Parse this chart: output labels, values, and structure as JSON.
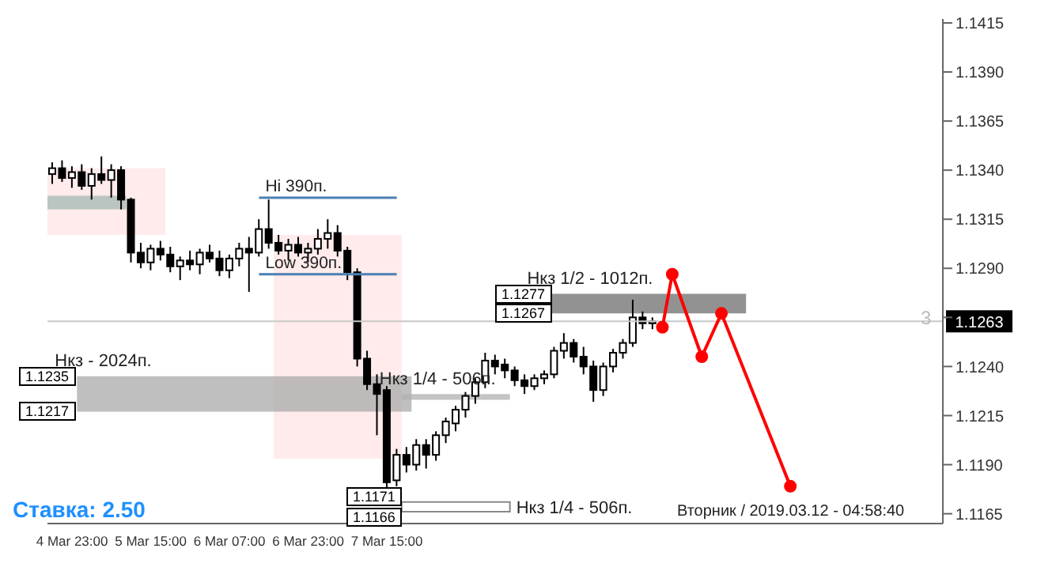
{
  "chart_data": {
    "type": "candlestick",
    "color": "#000000",
    "categories": [
      null,
      null,
      "4 Mar 23:00",
      null,
      null,
      null,
      null,
      null,
      null,
      null,
      "5 Mar 15:00",
      null,
      null,
      null,
      null,
      null,
      null,
      null,
      "6 Mar 07:00",
      null,
      null,
      null,
      null,
      null,
      null,
      null,
      "6 Mar 23:00",
      null,
      null,
      null,
      null,
      null,
      null,
      null,
      "7 Mar 15:00",
      null,
      null,
      null,
      null,
      null,
      null,
      null,
      null,
      null,
      null,
      null,
      null,
      null,
      null,
      null,
      null,
      null,
      null,
      null,
      null,
      null,
      null,
      null,
      null,
      null,
      null,
      null,
      null,
      null,
      null,
      null,
      null,
      null,
      null,
      null,
      null,
      null,
      null,
      null,
      null,
      null,
      null,
      null,
      null,
      null,
      null,
      null,
      null,
      null,
      null,
      null,
      null,
      null,
      null,
      null,
      null
    ],
    "ohlc": [
      [
        1.1338,
        1.1344,
        1.1333,
        1.1341
      ],
      [
        1.1341,
        1.1345,
        1.1334,
        1.1336
      ],
      [
        1.1336,
        1.1342,
        1.1331,
        1.1339
      ],
      [
        1.1339,
        1.1343,
        1.133,
        1.1332
      ],
      [
        1.1332,
        1.1341,
        1.1325,
        1.1338
      ],
      [
        1.1338,
        1.1347,
        1.1333,
        1.1335
      ],
      [
        1.1335,
        1.1343,
        1.1326,
        1.134
      ],
      [
        1.134,
        1.1342,
        1.132,
        1.1325
      ],
      [
        1.1325,
        1.1326,
        1.1293,
        1.1298
      ],
      [
        1.1298,
        1.1303,
        1.129,
        1.1293
      ],
      [
        1.1293,
        1.1302,
        1.1289,
        1.13
      ],
      [
        1.13,
        1.1304,
        1.1294,
        1.1297
      ],
      [
        1.1297,
        1.1301,
        1.1288,
        1.1291
      ],
      [
        1.1291,
        1.1296,
        1.1284,
        1.1294
      ],
      [
        1.1294,
        1.1299,
        1.1289,
        1.1292
      ],
      [
        1.1292,
        1.13,
        1.1287,
        1.1298
      ],
      [
        1.1298,
        1.1302,
        1.1293,
        1.1295
      ],
      [
        1.1295,
        1.1299,
        1.1286,
        1.1289
      ],
      [
        1.1289,
        1.1297,
        1.1285,
        1.1295
      ],
      [
        1.1295,
        1.1303,
        1.1291,
        1.13
      ],
      [
        1.13,
        1.1306,
        1.1278,
        1.1298
      ],
      [
        1.1298,
        1.1315,
        1.1296,
        1.131
      ],
      [
        1.131,
        1.1325,
        1.13,
        1.1303
      ],
      [
        1.1303,
        1.1307,
        1.1297,
        1.1299
      ],
      [
        1.1299,
        1.1305,
        1.1294,
        1.1302
      ],
      [
        1.1302,
        1.1306,
        1.1296,
        1.1298
      ],
      [
        1.1298,
        1.1303,
        1.1293,
        1.13
      ],
      [
        1.13,
        1.131,
        1.1297,
        1.1305
      ],
      [
        1.1305,
        1.1315,
        1.13,
        1.1308
      ],
      [
        1.1308,
        1.1312,
        1.1296,
        1.1299
      ],
      [
        1.1299,
        1.1301,
        1.1284,
        1.1288
      ],
      [
        1.1288,
        1.129,
        1.124,
        1.1244
      ],
      [
        1.1244,
        1.1248,
        1.1228,
        1.1231
      ],
      [
        1.1231,
        1.1236,
        1.1205,
        1.1226
      ],
      [
        1.1228,
        1.123,
        1.1178,
        1.1181
      ],
      [
        1.1182,
        1.1198,
        1.1179,
        1.1195
      ],
      [
        1.1195,
        1.1199,
        1.1186,
        1.119
      ],
      [
        1.119,
        1.1203,
        1.1187,
        1.12
      ],
      [
        1.12,
        1.1203,
        1.1188,
        1.1195
      ],
      [
        1.1195,
        1.1207,
        1.1192,
        1.1205
      ],
      [
        1.1205,
        1.1214,
        1.1201,
        1.1212
      ],
      [
        1.1211,
        1.122,
        1.1207,
        1.1218
      ],
      [
        1.1218,
        1.1227,
        1.1214,
        1.1225
      ],
      [
        1.1225,
        1.1234,
        1.1221,
        1.1232
      ],
      [
        1.1232,
        1.1247,
        1.1229,
        1.1243
      ],
      [
        1.1243,
        1.1246,
        1.1236,
        1.124
      ],
      [
        1.1241,
        1.1244,
        1.1234,
        1.1238
      ],
      [
        1.1238,
        1.124,
        1.123,
        1.1233
      ],
      [
        1.1233,
        1.1236,
        1.1226,
        1.123
      ],
      [
        1.123,
        1.1236,
        1.1228,
        1.1234
      ],
      [
        1.1234,
        1.1238,
        1.1231,
        1.1236
      ],
      [
        1.1236,
        1.125,
        1.1234,
        1.1248
      ],
      [
        1.1248,
        1.1257,
        1.1244,
        1.1252
      ],
      [
        1.1252,
        1.1254,
        1.1242,
        1.1245
      ],
      [
        1.1245,
        1.125,
        1.1236,
        1.124
      ],
      [
        1.124,
        1.1243,
        1.1222,
        1.1228
      ],
      [
        1.1228,
        1.1242,
        1.1225,
        1.124
      ],
      [
        1.124,
        1.1249,
        1.1237,
        1.1247
      ],
      [
        1.1247,
        1.1254,
        1.1244,
        1.1252
      ],
      [
        1.1252,
        1.1274,
        1.125,
        1.1265
      ],
      [
        1.1265,
        1.1268,
        1.1259,
        1.1262
      ],
      [
        1.1262,
        1.1265,
        1.1259,
        1.1263
      ],
      null,
      null,
      null,
      null,
      null,
      null,
      null,
      null,
      null,
      null,
      null,
      null,
      null,
      null,
      null,
      null,
      null,
      null,
      null,
      null,
      null,
      null,
      null,
      null,
      null,
      null,
      null,
      null,
      null
    ],
    "series": [
      {
        "type": "line",
        "color": "#ff0000",
        "values": [
          null,
          null,
          null,
          null,
          null,
          null,
          null,
          null,
          null,
          null,
          null,
          null,
          null,
          null,
          null,
          null,
          null,
          null,
          null,
          null,
          null,
          null,
          null,
          null,
          null,
          null,
          null,
          null,
          null,
          null,
          null,
          null,
          null,
          null,
          null,
          null,
          null,
          null,
          null,
          null,
          null,
          null,
          null,
          null,
          null,
          null,
          null,
          null,
          null,
          null,
          null,
          null,
          null,
          null,
          null,
          null,
          null,
          null,
          null,
          null,
          null,
          null,
          1.126,
          1.1287,
          null,
          null,
          1.1245,
          null,
          1.1267,
          null,
          null,
          null,
          null,
          null,
          null,
          1.1179,
          null,
          null,
          null,
          null,
          null,
          null,
          null,
          null,
          null,
          null,
          null,
          null,
          null,
          null,
          null
        ]
      }
    ],
    "marker": "circle",
    "ylim": [
      1.116,
      1.1417
    ],
    "yticks": [
      {
        "value": 1.1165,
        "label": "1.1165"
      },
      {
        "value": 1.119,
        "label": "1.1190"
      },
      {
        "value": 1.1215,
        "label": "1.1215"
      },
      {
        "value": 1.124,
        "label": "1.1240"
      },
      {
        "value": 1.1265,
        "label": null
      },
      {
        "value": 1.129,
        "label": "1.1290"
      },
      {
        "value": 1.1315,
        "label": "1.1315"
      },
      {
        "value": 1.134,
        "label": "1.1340"
      },
      {
        "value": 1.1365,
        "label": "1.1365"
      },
      {
        "value": 1.139,
        "label": "1.1390"
      },
      {
        "value": 1.1415,
        "label": "1.1415"
      }
    ],
    "bands": [
      {
        "axis": "y",
        "from": 1.1307,
        "to": 1.1341,
        "color": "#ffe4e4"
      },
      {
        "axis": "y",
        "from": 1.1193,
        "to": 1.1307,
        "color": "#ffe4e4"
      },
      {
        "axis": "y",
        "from": 1.132,
        "to": 1.1327,
        "color": "#a3b8b4"
      },
      {
        "axis": "y",
        "from": 1.1217,
        "to": 1.1235,
        "color": "#a9a9a9",
        "label": "Нкз - 2024п."
      },
      {
        "axis": "y",
        "from": 1.1223,
        "to": 1.1226,
        "color": "#b0b0b0",
        "label": "Нкз 1/4 - 506п."
      },
      {
        "axis": "y",
        "from": 1.1267,
        "to": 1.1277,
        "color": "#6e6e6e",
        "label": "Нкз 1/2 - 1012п."
      },
      {
        "axis": "y",
        "from": 1.1166,
        "to": 1.1171,
        "color": "#ffffff",
        "label": "Нкз 1/4 - 506п."
      }
    ],
    "ref_lines": [
      {
        "axis": "y",
        "value": 1.1326,
        "label": "Hi 390п.",
        "color": "#4a7fb5"
      },
      {
        "axis": "y",
        "value": 1.1287,
        "label": "Low 390п.",
        "color": "#4a7fb5"
      },
      {
        "axis": "y",
        "value": 1.1263,
        "label": "1.1263",
        "color": "#c8c8c8"
      }
    ],
    "annotations": [
      "Ставка: 2.50",
      "Вторник / 2019.03.12 - 04:58:40",
      "3",
      "1.1277",
      "1.1267",
      "1.1235",
      "1.1217",
      "1.1171",
      "1.1166"
    ],
    "grid": false
  }
}
